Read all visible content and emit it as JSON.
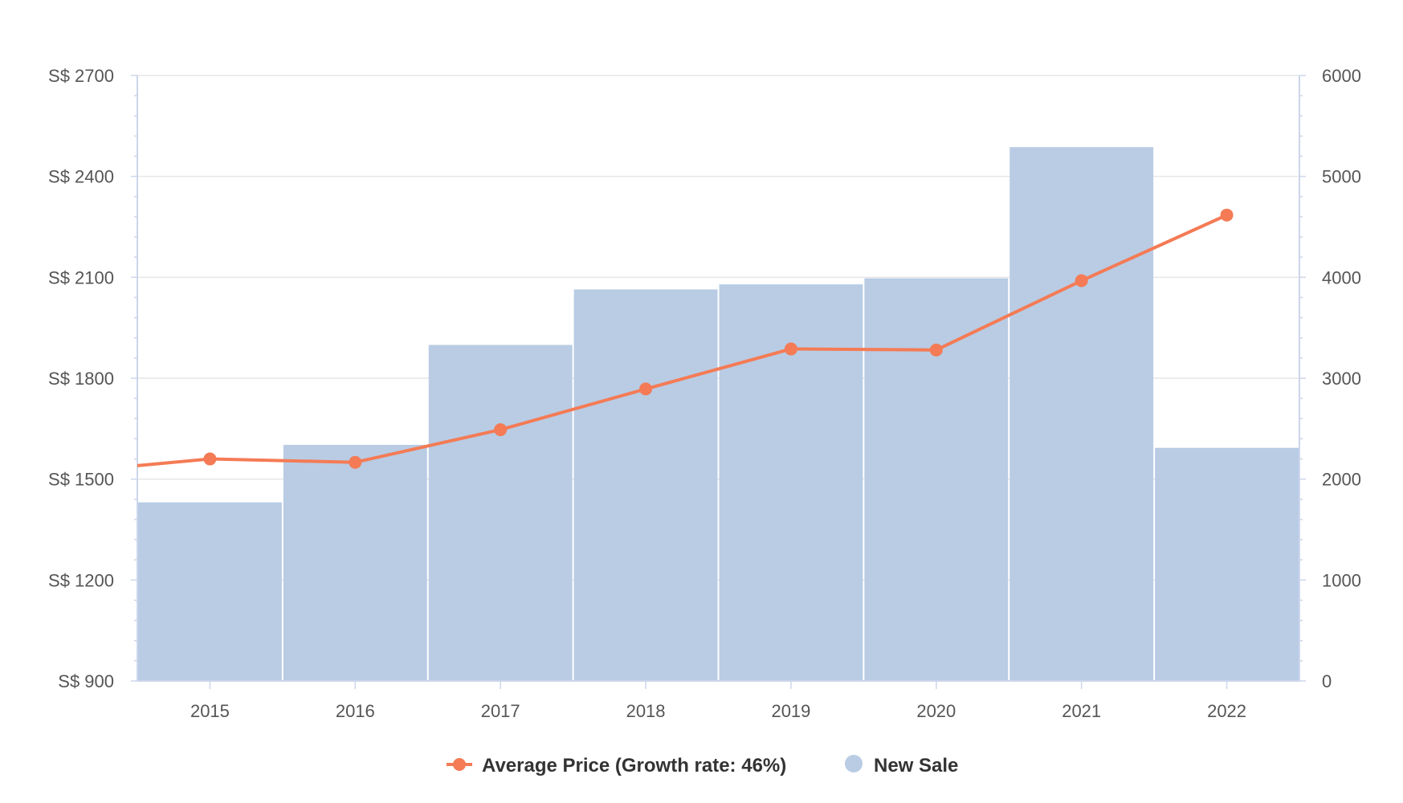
{
  "colors": {
    "bar": "#b9cce4",
    "line": "#f47b55",
    "grid": "#e6e6e6",
    "axis": "#ccd6eb",
    "background": "#ffffff"
  },
  "chart_data": {
    "type": "bar",
    "categories": [
      "2015",
      "2016",
      "2017",
      "2018",
      "2019",
      "2020",
      "2021",
      "2022"
    ],
    "y_left": {
      "ylim": [
        900,
        2700
      ],
      "ticks": [
        900,
        1200,
        1500,
        1800,
        2100,
        2400,
        2700
      ],
      "tick_labels": [
        "S$ 900",
        "S$ 1200",
        "S$ 1500",
        "S$ 1800",
        "S$ 2100",
        "S$ 2400",
        "S$ 2700"
      ]
    },
    "y_right": {
      "ylim": [
        0,
        6000
      ],
      "ticks": [
        0,
        1000,
        2000,
        3000,
        4000,
        5000,
        6000
      ],
      "tick_labels": [
        "0",
        "1000",
        "2000",
        "3000",
        "4000",
        "5000",
        "6000"
      ]
    },
    "series": [
      {
        "name": "New Sale",
        "type": "bar",
        "axis": "right",
        "values": [
          1770,
          2340,
          3330,
          3880,
          3930,
          3990,
          5290,
          2310
        ]
      },
      {
        "name": "Average Price (Growth rate: 46%)",
        "type": "line",
        "axis": "left",
        "values": [
          1560,
          1550,
          1647,
          1768,
          1887,
          1884,
          2090,
          2285
        ],
        "leading_value": 1540
      }
    ],
    "grid": true,
    "legend_position": "bottom-center"
  }
}
